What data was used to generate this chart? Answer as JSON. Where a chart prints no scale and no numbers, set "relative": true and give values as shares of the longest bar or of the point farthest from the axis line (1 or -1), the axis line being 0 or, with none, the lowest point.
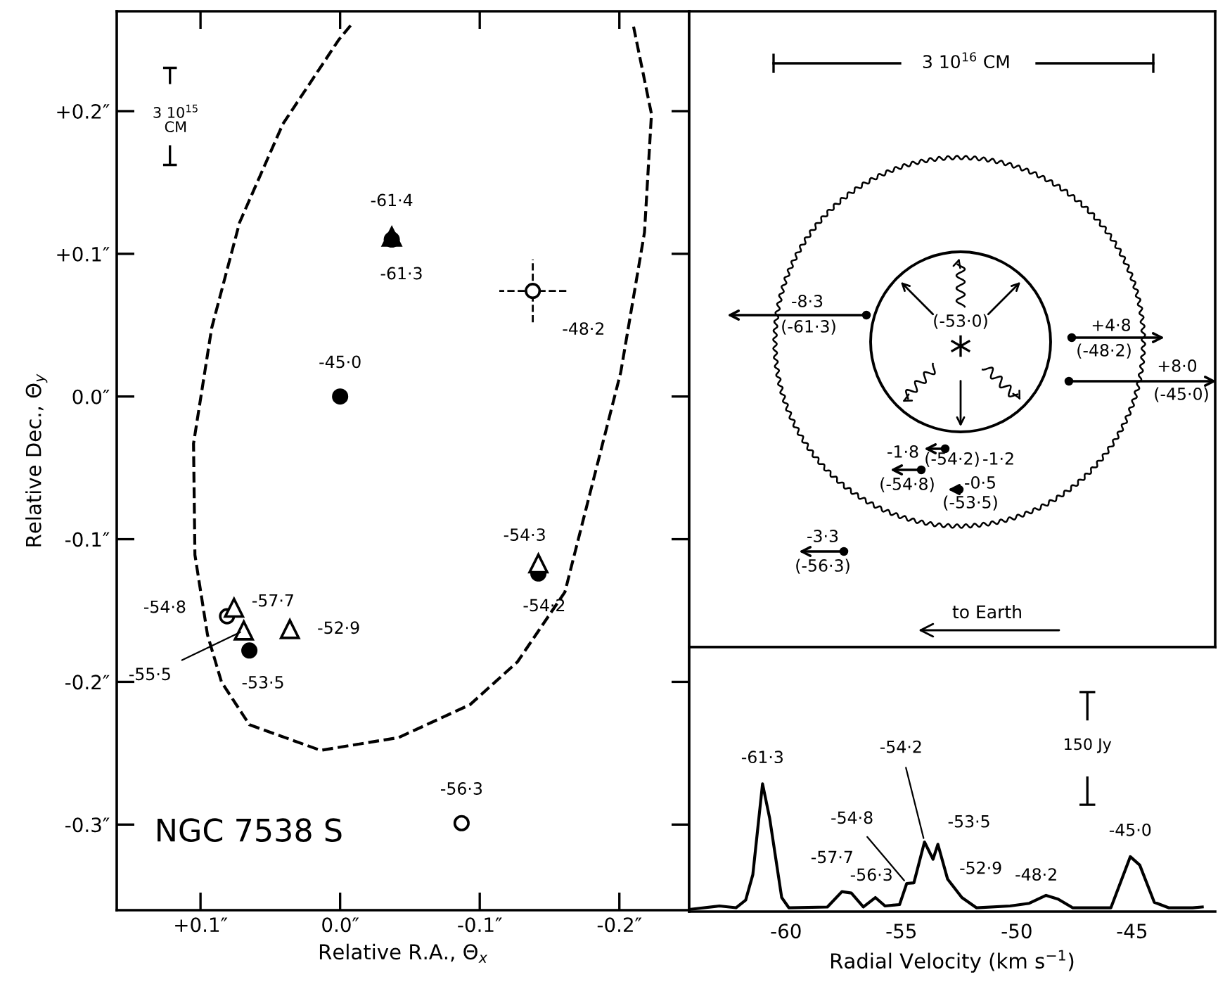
{
  "chart_data": [
    {
      "type": "scatter",
      "xlabel": "Relative R.A., Θ$_{x}$",
      "ylabel": "Relative Dec., Θ$_{y}$",
      "xlim": [
        0.16,
        -0.25
      ],
      "ylim": [
        -0.36,
        0.27
      ],
      "xticks": [
        {
          "value": 0.1,
          "label": "+0.1″"
        },
        {
          "value": 0.0,
          "label": "0.0″"
        },
        {
          "value": -0.1,
          "label": "-0.1″"
        },
        {
          "value": -0.2,
          "label": "-0.2″"
        }
      ],
      "yticks": [
        {
          "value": 0.2,
          "label": "+0.2″"
        },
        {
          "value": 0.1,
          "label": "+0.1″"
        },
        {
          "value": 0.0,
          "label": "0.0″"
        },
        {
          "value": -0.1,
          "label": "-0.1″"
        },
        {
          "value": -0.2,
          "label": "-0.2″"
        },
        {
          "value": -0.3,
          "label": "-0.3″"
        }
      ],
      "series": [
        {
          "type": "line",
          "color": "#000000",
          "marker": "none",
          "line_style": "dashed",
          "x": [
            -0.0075,
            0.001,
            0.041,
            0.072,
            0.092,
            0.105,
            0.104,
            0.095,
            0.085,
            0.065,
            0.014,
            -0.042,
            -0.093,
            -0.127,
            -0.161,
            -0.181,
            -0.201,
            -0.218,
            -0.223,
            -0.21
          ],
          "values": [
            0.26,
            0.25,
            0.191,
            0.122,
            0.048,
            -0.033,
            -0.111,
            -0.167,
            -0.2,
            -0.23,
            -0.248,
            -0.239,
            -0.216,
            -0.186,
            -0.137,
            -0.06,
            0.017,
            0.115,
            0.198,
            0.26
          ]
        },
        {
          "color": "#000000",
          "marker": "triangle",
          "x": [
            -0.037
          ],
          "values": [
            0.112
          ]
        },
        {
          "color": "#000000",
          "marker": "circle",
          "x": [
            -0.037,
            0.0,
            -0.142,
            0.065
          ],
          "values": [
            0.11,
            0.0,
            -0.124,
            -0.178
          ]
        },
        {
          "color": "#ffffff",
          "marker": "circle",
          "x": [
            0.081,
            -0.087
          ],
          "values": [
            -0.154,
            -0.299
          ]
        },
        {
          "color": "#ffffff",
          "marker": "circle",
          "line_style": "dashed",
          "x": [
            -0.138
          ],
          "values": [
            0.074
          ],
          "errors": [
            0.022
          ],
          "xerrors": [
            0.024
          ]
        },
        {
          "color": "#ffffff",
          "marker": "triangle",
          "x": [
            -0.142,
            0.076,
            0.069,
            0.036
          ],
          "values": [
            -0.117,
            -0.148,
            -0.164,
            -0.163
          ]
        }
      ],
      "annotations": [
        "3 10$^{15}$\nCM",
        "NGC 7538 S",
        {
          "text": "-61·4",
          "x": -0.037,
          "y": 0.112
        },
        {
          "text": "-61·3",
          "x": -0.037,
          "y": 0.11
        },
        {
          "text": "-48·2",
          "x": -0.138,
          "y": 0.074
        },
        {
          "text": "-45·0",
          "x": 0.0,
          "y": 0.0
        },
        {
          "text": "-54·3",
          "x": -0.142,
          "y": -0.117
        },
        {
          "text": "-54·2",
          "x": -0.142,
          "y": -0.124
        },
        "-54·8",
        {
          "text": "-57·7",
          "x": 0.076,
          "y": -0.148
        },
        {
          "text": "-55·5",
          "x": 0.069,
          "y": -0.164
        },
        {
          "text": "-53·5",
          "x": 0.065,
          "y": -0.178
        },
        {
          "text": "-52·9",
          "x": 0.036,
          "y": -0.163
        },
        {
          "text": "-56·3",
          "x": -0.087,
          "y": -0.299
        }
      ]
    },
    {
      "type": "other",
      "annotations": [
        "3 10$^{16}$ CM",
        "-8·3",
        "(-61·3)",
        "(-53·0)",
        "+4·8",
        "(-48·2)",
        "+8·0",
        "(-45·0)",
        "-1·8",
        "(-54·2)",
        "-1·2",
        "(-54·8)",
        "-0·5",
        "(-53·5)",
        "-3·3",
        "(-56·3)",
        "to Earth"
      ]
    },
    {
      "type": "line",
      "relative": true,
      "tick_labels": "x",
      "xlabel": "Radial Velocity (km s$^{−1}$)",
      "xlim": [
        -64.2,
        -41.4
      ],
      "xticks": [
        -60,
        -55,
        -50,
        -45
      ],
      "x": [
        -64.14,
        -62.89,
        -62.17,
        -61.75,
        -61.44,
        -61.02,
        -60.71,
        -60.19,
        -59.88,
        -58.21,
        -57.58,
        -57.17,
        -56.65,
        -56.13,
        -55.71,
        -55.08,
        -54.77,
        -54.46,
        -54.0,
        -53.63,
        -53.42,
        -53.0,
        -52.38,
        -51.75,
        -50.29,
        -49.46,
        -48.73,
        -48.21,
        -47.58,
        -45.92,
        -45.08,
        -44.67,
        -44.04,
        -43.42,
        -42.38,
        -41.96
      ],
      "series": [
        {
          "color": "#000000",
          "marker": "none",
          "line_style": "solid",
          "values": [
            0.018,
            0.044,
            0.03,
            0.09,
            0.29,
            1.0,
            0.73,
            0.11,
            0.03,
            0.036,
            0.156,
            0.145,
            0.036,
            0.11,
            0.044,
            0.055,
            0.22,
            0.225,
            0.545,
            0.41,
            0.527,
            0.255,
            0.11,
            0.03,
            0.044,
            0.065,
            0.127,
            0.098,
            0.03,
            0.03,
            0.43,
            0.364,
            0.073,
            0.03,
            0.03,
            0.036
          ]
        }
      ],
      "annotations": [
        "150 Jy",
        {
          "text": "-61·3",
          "x": -61.02,
          "y": 1.0
        },
        {
          "text": "-57·7",
          "x": -57.58,
          "y": 0.156
        },
        {
          "text": "-56·3",
          "x": -56.13,
          "y": 0.11
        },
        {
          "text": "-54·8",
          "x": -54.77,
          "y": 0.22
        },
        {
          "text": "-54·2",
          "x": -54.0,
          "y": 0.545
        },
        {
          "text": "-53·5",
          "x": -53.42,
          "y": 0.527
        },
        {
          "text": "-52·9",
          "x": -53.0,
          "y": 0.255
        },
        {
          "text": "-48·2",
          "x": -48.73,
          "y": 0.127
        },
        {
          "text": "-45·0",
          "x": -45.08,
          "y": 0.43
        }
      ]
    }
  ]
}
